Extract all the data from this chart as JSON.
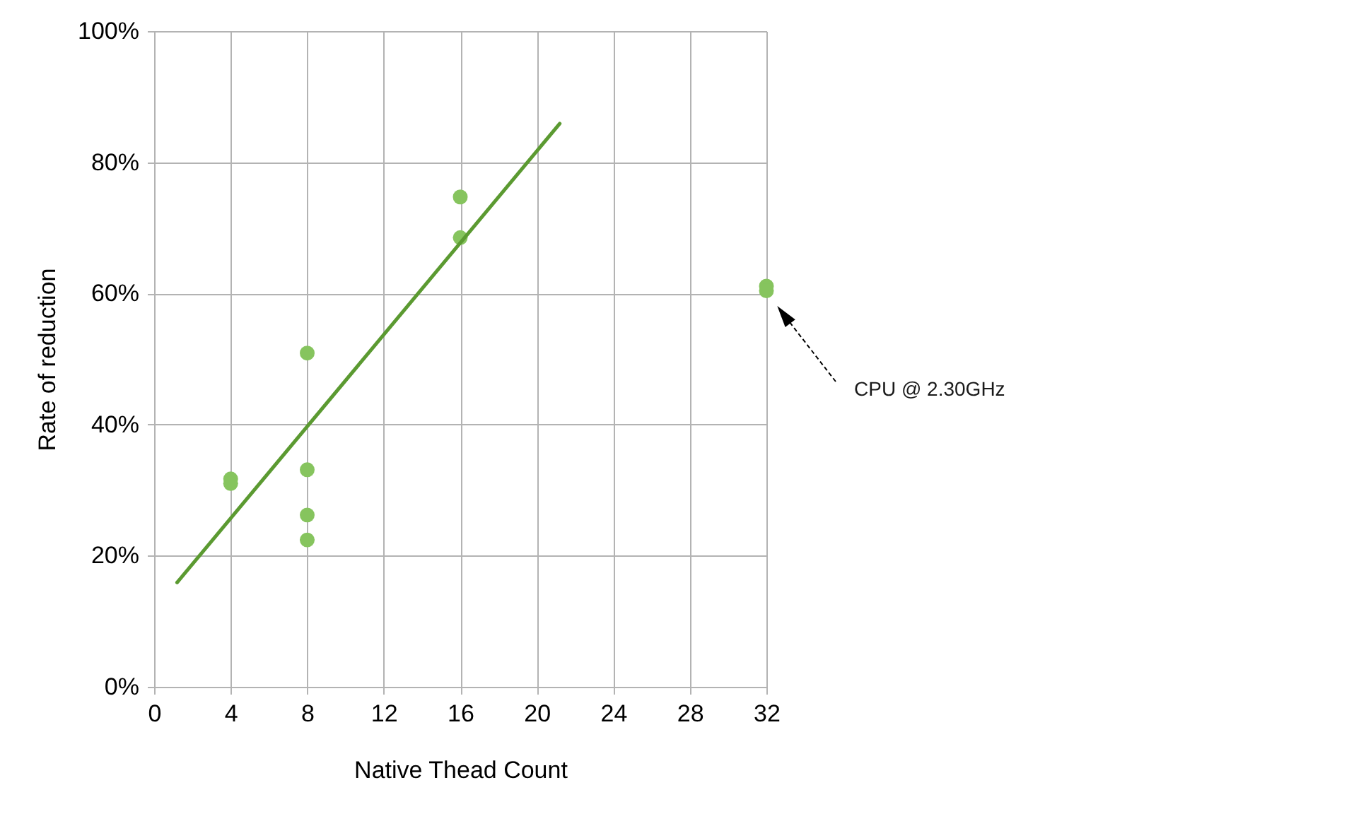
{
  "chart_data": {
    "type": "scatter",
    "xlabel": "Native Thead Count",
    "ylabel": "Rate of reduction",
    "series": [
      {
        "marker": "circle",
        "color": "#86c45e",
        "x": [
          4,
          4,
          8,
          8,
          8,
          8,
          16,
          16,
          32,
          32
        ],
        "values": [
          31.7,
          31.0,
          50.9,
          33.1,
          26.2,
          22.4,
          74.7,
          68.5,
          61.1,
          60.4
        ]
      },
      {
        "type": "line",
        "marker": "none",
        "color": "#5b9a31",
        "x": [
          1.2,
          21.2
        ],
        "values": [
          15.9,
          85.9
        ]
      }
    ],
    "xlim": [
      0,
      32
    ],
    "xticks": [
      0,
      4,
      8,
      12,
      16,
      20,
      24,
      28,
      32
    ],
    "ylim": [
      0,
      100
    ],
    "yticks": [
      {
        "value": 0,
        "label": "0%"
      },
      {
        "value": 20,
        "label": "20%"
      },
      {
        "value": 40,
        "label": "40%"
      },
      {
        "value": 60,
        "label": "60%"
      },
      {
        "value": 80,
        "label": "80%"
      },
      {
        "value": 100,
        "label": "100%"
      }
    ],
    "grid": true,
    "annotations": [
      "CPU @ 2.30GHz"
    ]
  }
}
